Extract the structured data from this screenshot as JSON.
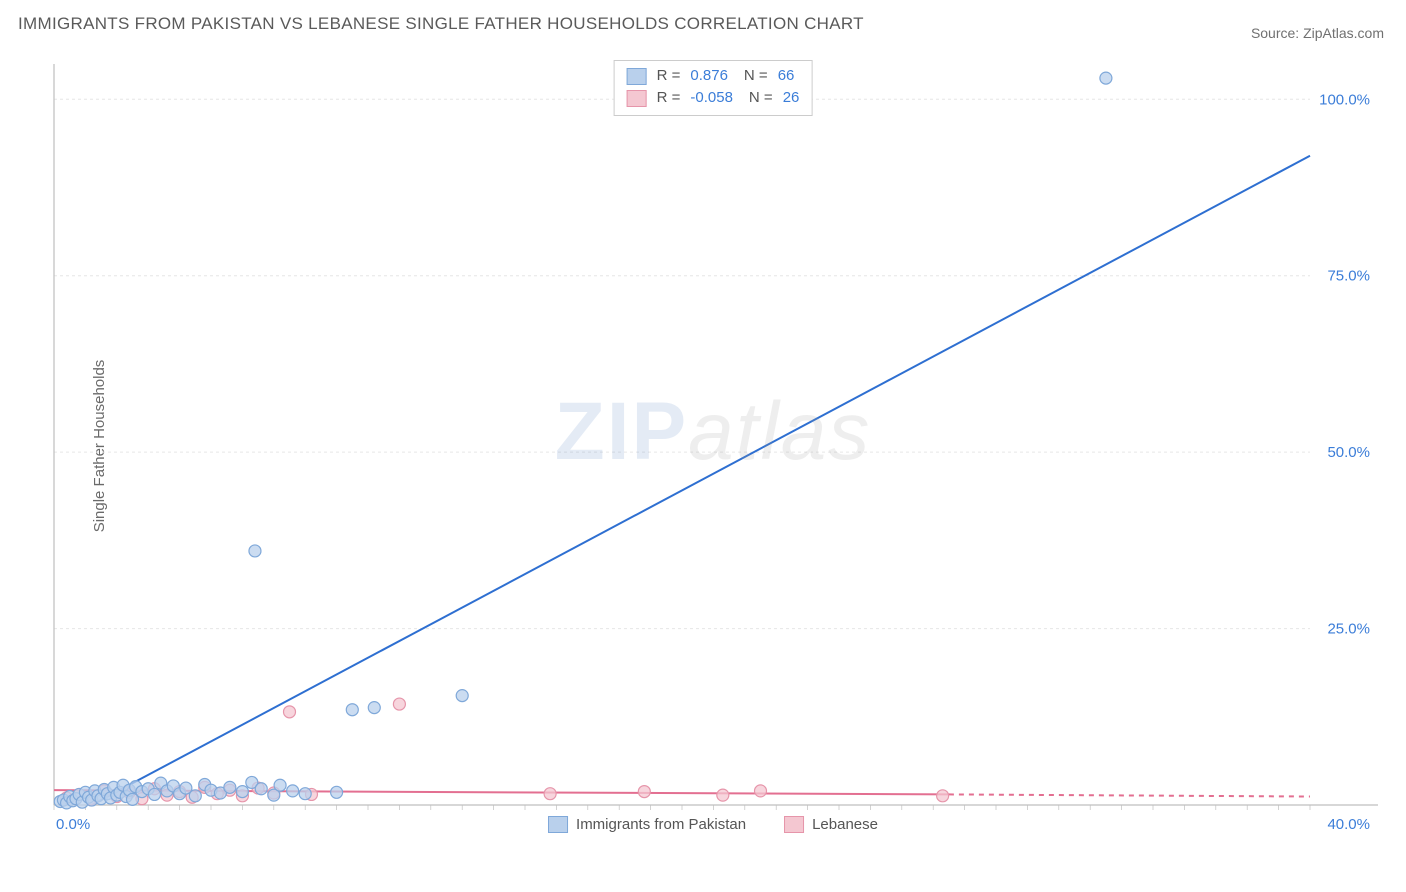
{
  "title": "IMMIGRANTS FROM PAKISTAN VS LEBANESE SINGLE FATHER HOUSEHOLDS CORRELATION CHART",
  "source_label": "Source: ",
  "source_site": "ZipAtlas.com",
  "ylabel": "Single Father Households",
  "watermark_zip": "ZIP",
  "watermark_atlas": "atlas",
  "chart": {
    "type": "scatter",
    "xlim": [
      0,
      40
    ],
    "ylim": [
      0,
      105
    ],
    "xtick_labels": [
      "0.0%",
      "40.0%"
    ],
    "xtick_values": [
      0,
      40
    ],
    "ytick_labels": [
      "25.0%",
      "50.0%",
      "75.0%",
      "100.0%"
    ],
    "ytick_values": [
      25,
      50,
      75,
      100
    ],
    "grid_color": "#e6e6e6",
    "axis_color": "#bfbfbf",
    "plot_bg": "#ffffff",
    "marker_radius": 6,
    "marker_stroke_width": 1.2,
    "line_width": 2,
    "series": [
      {
        "name": "Immigrants from Pakistan",
        "color_fill": "#b9d0ec",
        "color_stroke": "#7fa8d9",
        "line_color": "#2e6fd1",
        "r": "0.876",
        "n": "66",
        "trend": {
          "x1": 1.2,
          "y1": 0,
          "x2": 40,
          "y2": 92
        },
        "points": [
          [
            0.2,
            0.5
          ],
          [
            0.3,
            0.7
          ],
          [
            0.4,
            0.3
          ],
          [
            0.5,
            1.2
          ],
          [
            0.6,
            0.6
          ],
          [
            0.7,
            0.9
          ],
          [
            0.8,
            1.5
          ],
          [
            0.9,
            0.4
          ],
          [
            1.0,
            1.8
          ],
          [
            1.1,
            1.1
          ],
          [
            1.2,
            0.7
          ],
          [
            1.3,
            2.0
          ],
          [
            1.4,
            1.3
          ],
          [
            1.5,
            0.9
          ],
          [
            1.6,
            2.2
          ],
          [
            1.7,
            1.6
          ],
          [
            1.8,
            1.0
          ],
          [
            1.9,
            2.5
          ],
          [
            2.0,
            1.4
          ],
          [
            2.1,
            1.8
          ],
          [
            2.2,
            2.8
          ],
          [
            2.3,
            1.2
          ],
          [
            2.4,
            2.1
          ],
          [
            2.5,
            0.8
          ],
          [
            2.6,
            2.6
          ],
          [
            2.8,
            1.9
          ],
          [
            3.0,
            2.3
          ],
          [
            3.2,
            1.5
          ],
          [
            3.4,
            3.1
          ],
          [
            3.6,
            2.0
          ],
          [
            3.8,
            2.7
          ],
          [
            4.0,
            1.6
          ],
          [
            4.2,
            2.4
          ],
          [
            4.5,
            1.3
          ],
          [
            4.8,
            2.9
          ],
          [
            5.0,
            2.1
          ],
          [
            5.3,
            1.7
          ],
          [
            5.6,
            2.5
          ],
          [
            6.0,
            1.9
          ],
          [
            6.3,
            3.2
          ],
          [
            6.6,
            2.3
          ],
          [
            7.0,
            1.4
          ],
          [
            7.2,
            2.8
          ],
          [
            7.6,
            2.0
          ],
          [
            8.0,
            1.6
          ],
          [
            9.0,
            1.8
          ],
          [
            6.4,
            36.0
          ],
          [
            9.5,
            13.5
          ],
          [
            10.2,
            13.8
          ],
          [
            13.0,
            15.5
          ],
          [
            33.5,
            103.0
          ]
        ]
      },
      {
        "name": "Lebanese",
        "color_fill": "#f4c7d1",
        "color_stroke": "#e695aa",
        "line_color": "#e36f91",
        "r": "-0.058",
        "n": "26",
        "trend": {
          "x1": 0,
          "y1": 2.1,
          "x2": 28.5,
          "y2": 1.5
        },
        "trend_dash": {
          "x1": 28.5,
          "y1": 1.5,
          "x2": 40,
          "y2": 1.2
        },
        "points": [
          [
            0.4,
            1.0
          ],
          [
            0.8,
            1.5
          ],
          [
            1.2,
            0.8
          ],
          [
            1.6,
            2.0
          ],
          [
            2.0,
            1.2
          ],
          [
            2.4,
            1.8
          ],
          [
            2.8,
            0.9
          ],
          [
            3.2,
            2.3
          ],
          [
            3.6,
            1.4
          ],
          [
            4.0,
            1.9
          ],
          [
            4.4,
            1.1
          ],
          [
            4.8,
            2.5
          ],
          [
            5.2,
            1.6
          ],
          [
            5.6,
            2.1
          ],
          [
            6.0,
            1.3
          ],
          [
            6.5,
            2.4
          ],
          [
            7.0,
            1.7
          ],
          [
            7.5,
            13.2
          ],
          [
            8.2,
            1.5
          ],
          [
            11.0,
            14.3
          ],
          [
            15.8,
            1.6
          ],
          [
            18.8,
            1.9
          ],
          [
            21.3,
            1.4
          ],
          [
            22.5,
            2.0
          ],
          [
            28.3,
            1.3
          ]
        ]
      }
    ]
  },
  "legend_bottom": [
    {
      "label": "Immigrants from Pakistan",
      "fill": "#b9d0ec",
      "stroke": "#7fa8d9"
    },
    {
      "label": "Lebanese",
      "fill": "#f4c7d1",
      "stroke": "#e695aa"
    }
  ]
}
